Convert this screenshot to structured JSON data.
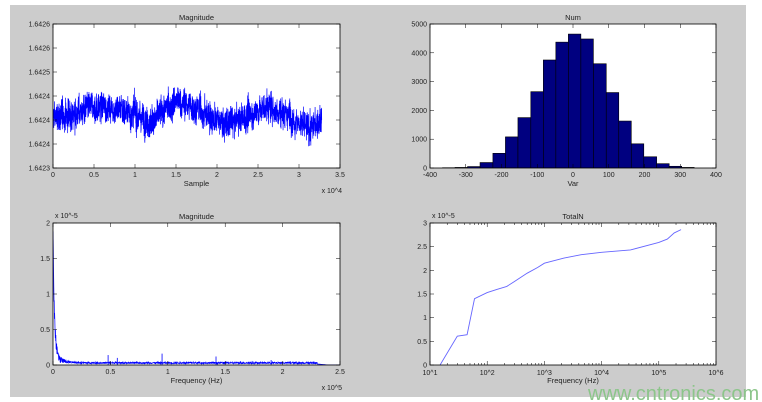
{
  "figure": {
    "background": "#cccccc",
    "watermark": "www.cntronics.com"
  },
  "chart_data": [
    {
      "id": "time-signal",
      "type": "line",
      "title": "Magnitude",
      "xlabel": "Sample",
      "ylabel": "",
      "x_multiplier": "x 10^4",
      "xlim": [
        0,
        35000
      ],
      "ylim": [
        1.6423,
        1.6426
      ],
      "xticks": [
        0,
        5000,
        10000,
        15000,
        20000,
        25000,
        30000,
        35000
      ],
      "xtick_labels": [
        "0",
        "0.5",
        "1",
        "1.5",
        "2",
        "2.5",
        "3",
        "3.5"
      ],
      "yticks": [
        1.6423,
        1.64235,
        1.6424,
        1.64245,
        1.6425,
        1.64255,
        1.6426
      ],
      "ytick_labels": [
        "1.6423",
        "1.6424",
        "1.6424",
        "1.6424",
        "1.6425",
        "1.6426",
        "1.6426"
      ],
      "samples": 32768,
      "trend": {
        "x": [
          0,
          3000,
          6000,
          9000,
          12000,
          15000,
          18000,
          21000,
          24000,
          26000,
          29000,
          31000,
          32768
        ],
        "y": [
          1.642405,
          1.642415,
          1.64243,
          1.64242,
          1.642395,
          1.64244,
          1.64242,
          1.64239,
          1.64241,
          1.64243,
          1.64241,
          1.64238,
          1.6424
        ]
      },
      "noise_amplitude": 6e-05,
      "color": "#0000ff",
      "grid": false
    },
    {
      "id": "histogram",
      "type": "bar",
      "title": "Num",
      "xlabel": "Var",
      "ylabel": "",
      "xlim": [
        -400,
        400
      ],
      "ylim": [
        0,
        5000
      ],
      "xticks": [
        -400,
        -300,
        -200,
        -100,
        0,
        100,
        200,
        300,
        400
      ],
      "yticks": [
        0,
        1000,
        2000,
        3000,
        4000,
        5000
      ],
      "bin_edges": [
        -365,
        -330,
        -295,
        -260,
        -224,
        -189,
        -154,
        -118,
        -83,
        -48,
        -13,
        22,
        57,
        93,
        128,
        163,
        198,
        234,
        269,
        304,
        339
      ],
      "values": [
        10,
        20,
        50,
        190,
        510,
        1080,
        1750,
        2650,
        3750,
        4370,
        4650,
        4480,
        3620,
        2620,
        1630,
        840,
        390,
        150,
        60,
        20
      ],
      "color": "#000080",
      "grid": false
    },
    {
      "id": "spectrum",
      "type": "line",
      "title": "Magnitude",
      "xlabel": "Frequency (Hz)",
      "ylabel": "",
      "x_multiplier": "x 10^5",
      "y_multiplier": "x 10^-5",
      "xlim": [
        0,
        250000
      ],
      "ylim": [
        0,
        2e-05
      ],
      "xticks": [
        0,
        50000,
        100000,
        150000,
        200000,
        250000
      ],
      "xtick_labels": [
        "0",
        "0.5",
        "1",
        "1.5",
        "2",
        "2.5"
      ],
      "yticks": [
        0,
        5e-06,
        1e-05,
        1.5e-05,
        2e-05
      ],
      "ytick_labels": [
        "0",
        "0.5",
        "1",
        "1.5",
        "2"
      ],
      "dc_peak": 1.75e-05,
      "noise_floor": 3e-07,
      "cutoff_hz": 230000,
      "spikes": {
        "x": [
          48000,
          56000,
          95000,
          142000,
          190000
        ],
        "y": [
          1.4e-06,
          1e-06,
          1.6e-06,
          1.2e-06,
          7e-07
        ]
      },
      "color": "#0000ff",
      "grid": false
    },
    {
      "id": "total-noise",
      "type": "line",
      "title": "TotalN",
      "xlabel": "Frequency (Hz)",
      "ylabel": "",
      "y_multiplier": "x 10^-5",
      "xscale": "log",
      "xlim": [
        10,
        1000000
      ],
      "ylim": [
        0,
        3e-05
      ],
      "xtick_labels": [
        "10^1",
        "10^2",
        "10^3",
        "10^4",
        "10^5",
        "10^6"
      ],
      "yticks": [
        0,
        5e-06,
        1e-05,
        1.5e-05,
        2e-05,
        2.5e-05,
        3e-05
      ],
      "ytick_labels": [
        "0",
        "0.5",
        "1",
        "1.5",
        "2",
        "2.5",
        "3"
      ],
      "x": [
        15,
        30,
        44.5,
        60,
        100,
        150,
        220,
        295,
        500,
        760,
        1000,
        2200,
        4400,
        10000,
        32000,
        100000,
        141000,
        186000,
        245000
      ],
      "y": [
        0,
        6.1e-06,
        6.4e-06,
        1.4e-05,
        1.53e-05,
        1.6e-05,
        1.66e-05,
        1.76e-05,
        1.94e-05,
        2.06e-05,
        2.15e-05,
        2.26e-05,
        2.33e-05,
        2.38e-05,
        2.43e-05,
        2.59e-05,
        2.66e-05,
        2.79e-05,
        2.86e-05
      ],
      "color": "#6666ff",
      "grid": false
    }
  ]
}
